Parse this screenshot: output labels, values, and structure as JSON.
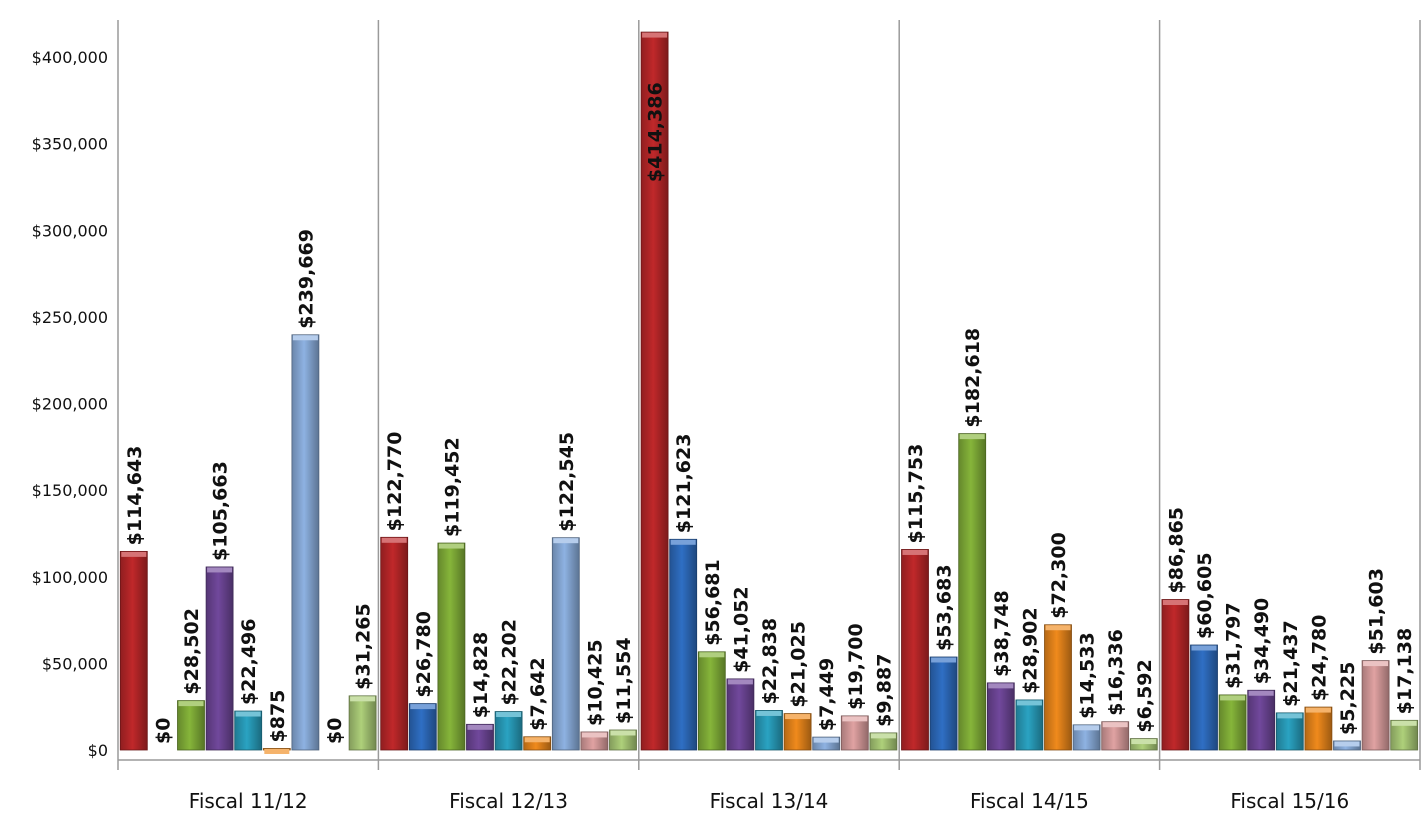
{
  "chart_data": {
    "type": "bar",
    "title": "",
    "xlabel": "",
    "ylabel": "",
    "ylim": [
      0,
      400000
    ],
    "y_ticks": [
      "$0",
      "$50,000",
      "$100,000",
      "$150,000",
      "$200,000",
      "$250,000",
      "$300,000",
      "$350,000",
      "$400,000"
    ],
    "y_tick_values": [
      0,
      50000,
      100000,
      150000,
      200000,
      250000,
      300000,
      350000,
      400000
    ],
    "grid": false,
    "legend": "none",
    "categories": [
      "Fiscal 11/12",
      "Fiscal 12/13",
      "Fiscal 13/14",
      "Fiscal 14/15",
      "Fiscal 15/16"
    ],
    "series": [
      {
        "color": "#c0282a",
        "values": [
          114643,
          122770,
          414386,
          115753,
          86865
        ],
        "labels": [
          "$114,643",
          "$122,770",
          "$414,386",
          "$115,753",
          "$86,865"
        ]
      },
      {
        "color": "#2f6fc4",
        "values": [
          0,
          26780,
          121623,
          53683,
          60605
        ],
        "labels": [
          "$0",
          "$26,780",
          "$121,623",
          "$53,683",
          "$60,605"
        ]
      },
      {
        "color": "#86b53a",
        "values": [
          28502,
          119452,
          56681,
          182618,
          31797
        ],
        "labels": [
          "$28,502",
          "$119,452",
          "$56,681",
          "$182,618",
          "$31,797"
        ]
      },
      {
        "color": "#71489c",
        "values": [
          105663,
          14828,
          41052,
          38748,
          34490
        ],
        "labels": [
          "$105,663",
          "$14,828",
          "$41,052",
          "$38,748",
          "$34,490"
        ]
      },
      {
        "color": "#2aa3c2",
        "values": [
          22496,
          22202,
          22838,
          28902,
          21437
        ],
        "labels": [
          "$22,496",
          "$22,202",
          "$22,838",
          "$28,902",
          "$21,437"
        ]
      },
      {
        "color": "#f08a1c",
        "values": [
          875,
          7642,
          21025,
          72300,
          24780
        ],
        "labels": [
          "$875",
          "$7,642",
          "$21,025",
          "$72,300",
          "$24,780"
        ]
      },
      {
        "color": "#8eb2e2",
        "values": [
          239669,
          122545,
          7449,
          14533,
          5225
        ],
        "labels": [
          "$239,669",
          "$122,545",
          "$7,449",
          "$14,533",
          "$5,225"
        ]
      },
      {
        "color": "#e0a2a2",
        "values": [
          0,
          10425,
          19700,
          16336,
          51603
        ],
        "labels": [
          "$0",
          "$10,425",
          "$19,700",
          "$16,336",
          "$51,603"
        ]
      },
      {
        "color": "#aed07a",
        "values": [
          31265,
          11554,
          9887,
          6592,
          17138
        ],
        "labels": [
          "$31,265",
          "$11,554",
          "$9,887",
          "$6,592",
          "$17,138"
        ]
      }
    ]
  }
}
